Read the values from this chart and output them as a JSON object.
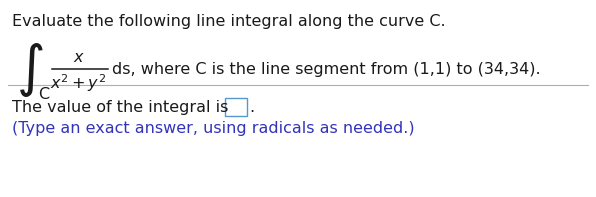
{
  "title_text": "Evaluate the following line integral along the curve C.",
  "title_color": "#1a1a1a",
  "title_fontsize": 11.5,
  "integral_color": "#1a1a1a",
  "integral_fontsize": 11.5,
  "integral_suffix": "ds, where C is the line segment from (1,1) to (34,34).",
  "answer_prefix": "The value of the integral is",
  "answer_color": "#1a1a1a",
  "answer_fontsize": 11.5,
  "hint_text": "(Type an exact answer, using radicals as needed.)",
  "hint_color": "#3333bb",
  "hint_fontsize": 11.5,
  "bg_color": "#ffffff",
  "line_color": "#aaaacc",
  "box_edge_color": "#5599cc"
}
